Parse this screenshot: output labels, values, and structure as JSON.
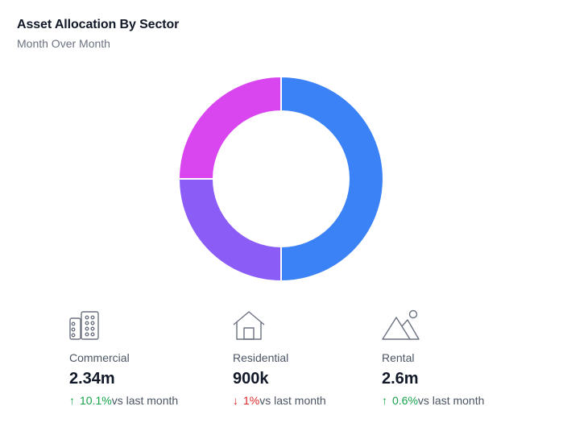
{
  "header": {
    "title": "Asset Allocation By Sector",
    "subtitle": "Month Over Month"
  },
  "chart_data": {
    "type": "pie",
    "donut": true,
    "title": "Asset Allocation By Sector",
    "subtitle": "Month Over Month",
    "legend": "none",
    "slices": [
      {
        "value": 50,
        "color": "#3b82f6"
      },
      {
        "value": 25,
        "color": "#8b5cf6"
      },
      {
        "value": 25,
        "color": "#d946ef"
      }
    ]
  },
  "stats": [
    {
      "label": "Commercial",
      "value": "2.34m",
      "change": "10.1%",
      "direction": "up",
      "suffix": "vs last month",
      "icon": "buildings-icon"
    },
    {
      "label": "Residential",
      "value": "900k",
      "change": "1%",
      "direction": "down",
      "suffix": "vs last month",
      "icon": "house-icon"
    },
    {
      "label": "Rental",
      "value": "2.6m",
      "change": "0.6%",
      "direction": "up",
      "suffix": "vs last month",
      "icon": "mountain-sun-icon"
    }
  ],
  "colors": {
    "up": "#16a34a",
    "down": "#dc2626",
    "slice_border": "#ffffff"
  }
}
